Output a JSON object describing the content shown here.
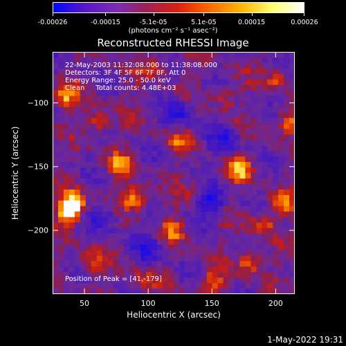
{
  "colorbar": {
    "tick_labels": [
      "-0.00026",
      "-0.00015",
      "-5.1e-05",
      "5.1e-05",
      "0.00015",
      "0.00026"
    ],
    "tick_fracs": [
      0.0,
      0.21,
      0.4,
      0.6,
      0.79,
      1.0
    ],
    "colors": [
      "#0008ff",
      "#5a16c8",
      "#7a2cb8",
      "#a02050",
      "#e02010",
      "#ff6a00",
      "#ffb400",
      "#ffff70",
      "#ffffff"
    ]
  },
  "units_label": "(photons cm⁻² s⁻¹ asec⁻²)",
  "title": "Reconstructed RHESSI Image",
  "annotations": [
    "22-May-2003 11:32:08.000 to 11:38:08.000",
    "Detectors: 3F 4F 5F 6F 7F 8F, Att 0",
    "Energy Range: 25.0 - 50.0 keV",
    "Clean     Total counts: 4.48E+03"
  ],
  "peak_label": "Position of Peak = [41,-179]",
  "chart_data": {
    "type": "heatmap",
    "title": "Reconstructed RHESSI Image",
    "xlabel": "Heliocentric X (arcsec)",
    "ylabel": "Heliocentric Y (arcsec)",
    "xlim": [
      25,
      215
    ],
    "ylim": [
      -250,
      -60
    ],
    "x_ticks": [
      50,
      100,
      150,
      200
    ],
    "y_ticks": [
      -100,
      -150,
      -200
    ],
    "peak": [
      41,
      -179
    ],
    "hot_spots": [
      {
        "x": 41,
        "y": -179,
        "level": 1.0
      },
      {
        "x": 38,
        "y": -186,
        "level": 0.95
      },
      {
        "x": 90,
        "y": -175,
        "level": 0.9
      },
      {
        "x": 78,
        "y": -148,
        "level": 0.7
      },
      {
        "x": 172,
        "y": -152,
        "level": 0.85
      },
      {
        "x": 205,
        "y": -178,
        "level": 0.65
      },
      {
        "x": 210,
        "y": -115,
        "level": 0.6
      },
      {
        "x": 200,
        "y": -80,
        "level": 0.55
      },
      {
        "x": 180,
        "y": -225,
        "level": 0.65
      },
      {
        "x": 150,
        "y": -240,
        "level": 0.6
      },
      {
        "x": 120,
        "y": -200,
        "level": 0.55
      },
      {
        "x": 60,
        "y": -115,
        "level": 0.6
      },
      {
        "x": 35,
        "y": -95,
        "level": 0.7
      },
      {
        "x": 105,
        "y": -72,
        "level": 0.5
      },
      {
        "x": 125,
        "y": -130,
        "level": 0.5
      },
      {
        "x": 55,
        "y": -225,
        "level": 0.5
      },
      {
        "x": 95,
        "y": -240,
        "level": 0.45
      },
      {
        "x": 190,
        "y": -195,
        "level": 0.55
      },
      {
        "x": 160,
        "y": -95,
        "level": 0.4
      },
      {
        "x": 140,
        "y": -170,
        "level": 0.3
      }
    ],
    "cold_spots": [
      {
        "x": 148,
        "y": -178,
        "level": -0.8
      },
      {
        "x": 125,
        "y": -108,
        "level": -0.6
      },
      {
        "x": 65,
        "y": -190,
        "level": -0.5
      },
      {
        "x": 160,
        "y": -130,
        "level": -0.55
      },
      {
        "x": 100,
        "y": -215,
        "level": -0.5
      }
    ]
  },
  "timestamp": "1-May-2022 19:31"
}
